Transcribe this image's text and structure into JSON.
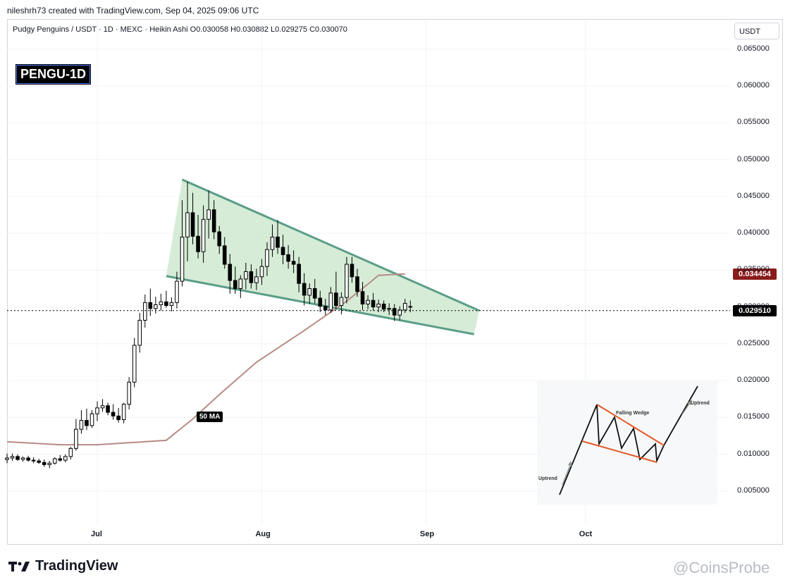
{
  "header": {
    "text": "nileshrh73 created with TradingView.com, Sep 04, 2025 09:06 UTC"
  },
  "legend": {
    "text": "Pudgy Penguins / USDT · 1D · MEXC · Heikin Ashi   O0.030058  H0.030882  L0.029275  C0.030070"
  },
  "badge": {
    "text": "PENGU-1D"
  },
  "currency": {
    "label": "USDT"
  },
  "ma_label": {
    "text": "50 MA"
  },
  "price_tags": {
    "ma_value": "0.034454",
    "last_price": "0.029510"
  },
  "footer": {
    "brand": "TradingView",
    "watermark": "@CoinsProbe"
  },
  "inset": {
    "falling_wedge": "Falling Wedge",
    "uptrend_left": "Uptrend",
    "uptrend_right": "Uptrend"
  },
  "colors": {
    "bull": "#ffffff",
    "bear": "#000000",
    "wedge_fill": "#c8e6c9",
    "wedge_line": "#5a9e87",
    "ma_line": "#b88a86",
    "ma_tag": "#8b1a1a",
    "last_price_tag": "#000000"
  },
  "chart_data": {
    "type": "candlestick",
    "style": "Heikin Ashi",
    "symbol": "Pudgy Penguins / USDT",
    "timeframe": "1D",
    "exchange": "MEXC",
    "ohlc_last": {
      "open": 0.030058,
      "high": 0.030882,
      "low": 0.029275,
      "close": 0.03007
    },
    "y_ticks": [
      "0.065000",
      "0.060000",
      "0.055000",
      "0.050000",
      "0.045000",
      "0.040000",
      "0.035000",
      "0.030000",
      "0.025000",
      "0.020000",
      "0.015000",
      "0.010000",
      "0.005000"
    ],
    "y_range": [
      0.0005,
      0.069
    ],
    "x_ticks": [
      {
        "label": "Jul",
        "day": 17
      },
      {
        "label": "Aug",
        "day": 48
      },
      {
        "label": "Sep",
        "day": 79
      },
      {
        "label": "Oct",
        "day": 109
      }
    ],
    "first_day": "2025-06-14",
    "candles": [
      [
        0.0093,
        0.0101,
        0.0088,
        0.0095
      ],
      [
        0.0095,
        0.0101,
        0.0091,
        0.0097
      ],
      [
        0.0097,
        0.01,
        0.0091,
        0.0093
      ],
      [
        0.0093,
        0.0097,
        0.009,
        0.0095
      ],
      [
        0.0095,
        0.0098,
        0.009,
        0.0092
      ],
      [
        0.0092,
        0.0096,
        0.0088,
        0.0091
      ],
      [
        0.0091,
        0.0094,
        0.0087,
        0.0089
      ],
      [
        0.0089,
        0.0093,
        0.0083,
        0.0086
      ],
      [
        0.0086,
        0.0091,
        0.0081,
        0.0088
      ],
      [
        0.0088,
        0.0096,
        0.0086,
        0.0094
      ],
      [
        0.0094,
        0.0099,
        0.009,
        0.0092
      ],
      [
        0.0092,
        0.01,
        0.0089,
        0.0097
      ],
      [
        0.0097,
        0.011,
        0.0093,
        0.0108
      ],
      [
        0.0108,
        0.0148,
        0.0105,
        0.0134
      ],
      [
        0.0134,
        0.016,
        0.0128,
        0.0146
      ],
      [
        0.0146,
        0.0162,
        0.0133,
        0.0139
      ],
      [
        0.0139,
        0.016,
        0.0136,
        0.0155
      ],
      [
        0.0155,
        0.0172,
        0.0145,
        0.0163
      ],
      [
        0.0163,
        0.0175,
        0.0158,
        0.0166
      ],
      [
        0.0166,
        0.017,
        0.0153,
        0.0157
      ],
      [
        0.0157,
        0.0168,
        0.0147,
        0.0152
      ],
      [
        0.0152,
        0.0163,
        0.0143,
        0.0147
      ],
      [
        0.0147,
        0.017,
        0.0142,
        0.0168
      ],
      [
        0.0168,
        0.0205,
        0.0161,
        0.0198
      ],
      [
        0.0198,
        0.0258,
        0.0191,
        0.0248
      ],
      [
        0.0248,
        0.0292,
        0.0238,
        0.0282
      ],
      [
        0.0282,
        0.0317,
        0.0272,
        0.0306
      ],
      [
        0.0306,
        0.0325,
        0.0288,
        0.0298
      ],
      [
        0.0298,
        0.0314,
        0.0291,
        0.0303
      ],
      [
        0.0303,
        0.0318,
        0.0295,
        0.0307
      ],
      [
        0.0307,
        0.0322,
        0.0299,
        0.0302
      ],
      [
        0.0302,
        0.0313,
        0.0294,
        0.0306
      ],
      [
        0.0306,
        0.0348,
        0.0298,
        0.0335
      ],
      [
        0.0335,
        0.0445,
        0.0328,
        0.0395
      ],
      [
        0.0395,
        0.047,
        0.0362,
        0.0428
      ],
      [
        0.0428,
        0.0455,
        0.0385,
        0.0396
      ],
      [
        0.0396,
        0.0425,
        0.0366,
        0.0375
      ],
      [
        0.0375,
        0.0438,
        0.036,
        0.0419
      ],
      [
        0.0419,
        0.0458,
        0.0393,
        0.0432
      ],
      [
        0.0432,
        0.0445,
        0.0392,
        0.0402
      ],
      [
        0.0402,
        0.041,
        0.0372,
        0.0383
      ],
      [
        0.0383,
        0.0395,
        0.0352,
        0.0358
      ],
      [
        0.0358,
        0.0372,
        0.0318,
        0.0336
      ],
      [
        0.0336,
        0.0355,
        0.0318,
        0.0325
      ],
      [
        0.0325,
        0.0343,
        0.0312,
        0.0338
      ],
      [
        0.0338,
        0.036,
        0.0324,
        0.0348
      ],
      [
        0.0348,
        0.0358,
        0.0325,
        0.0333
      ],
      [
        0.0333,
        0.0352,
        0.0323,
        0.0341
      ],
      [
        0.0341,
        0.0365,
        0.033,
        0.0355
      ],
      [
        0.0355,
        0.0388,
        0.0342,
        0.0378
      ],
      [
        0.0378,
        0.0412,
        0.0368,
        0.0395
      ],
      [
        0.0395,
        0.0418,
        0.0372,
        0.0381
      ],
      [
        0.0381,
        0.0398,
        0.0358,
        0.0371
      ],
      [
        0.0371,
        0.0384,
        0.0352,
        0.0362
      ],
      [
        0.0362,
        0.0377,
        0.0346,
        0.0358
      ],
      [
        0.0358,
        0.0368,
        0.032,
        0.0332
      ],
      [
        0.0332,
        0.0346,
        0.0302,
        0.0316
      ],
      [
        0.0316,
        0.0332,
        0.0304,
        0.0325
      ],
      [
        0.0325,
        0.0338,
        0.0305,
        0.0312
      ],
      [
        0.0312,
        0.0322,
        0.0293,
        0.0301
      ],
      [
        0.0301,
        0.0311,
        0.0289,
        0.0296
      ],
      [
        0.0296,
        0.0327,
        0.0292,
        0.0319
      ],
      [
        0.0319,
        0.0348,
        0.0296,
        0.0302
      ],
      [
        0.0302,
        0.032,
        0.029,
        0.0313
      ],
      [
        0.0313,
        0.0368,
        0.0305,
        0.0358
      ],
      [
        0.0358,
        0.0368,
        0.0333,
        0.0341
      ],
      [
        0.0341,
        0.0352,
        0.0314,
        0.0321
      ],
      [
        0.0321,
        0.0334,
        0.0296,
        0.0304
      ],
      [
        0.0304,
        0.0316,
        0.0297,
        0.0309
      ],
      [
        0.0309,
        0.0319,
        0.0295,
        0.03
      ],
      [
        0.03,
        0.031,
        0.0293,
        0.0304
      ],
      [
        0.0304,
        0.0309,
        0.0293,
        0.0297
      ],
      [
        0.0297,
        0.0305,
        0.0289,
        0.0298
      ],
      [
        0.0298,
        0.0304,
        0.0281,
        0.0289
      ],
      [
        0.0289,
        0.0301,
        0.0282,
        0.0296
      ],
      [
        0.0296,
        0.0311,
        0.0292,
        0.0305
      ],
      [
        0.030058,
        0.030882,
        0.029275,
        0.03007
      ]
    ],
    "ma50": [
      [
        0,
        0.0117
      ],
      [
        10,
        0.0113
      ],
      [
        17,
        0.0113
      ],
      [
        30,
        0.0119
      ],
      [
        35,
        0.0148
      ],
      [
        40,
        0.0181
      ],
      [
        47,
        0.0225
      ],
      [
        56,
        0.0268
      ],
      [
        64,
        0.0308
      ],
      [
        68,
        0.0331
      ],
      [
        70,
        0.0343
      ],
      [
        75,
        0.0345
      ]
    ],
    "wedge": {
      "upper": [
        [
          33,
          0.0473
        ],
        [
          89,
          0.0295
        ]
      ],
      "lower": [
        [
          33,
          0.0428
        ],
        [
          88,
          0.0263
        ]
      ],
      "left_top": [
        33,
        0.0473
      ],
      "left_bottom": [
        30,
        0.0342
      ]
    },
    "last_price": 0.02951,
    "ma_value": 0.034454
  }
}
